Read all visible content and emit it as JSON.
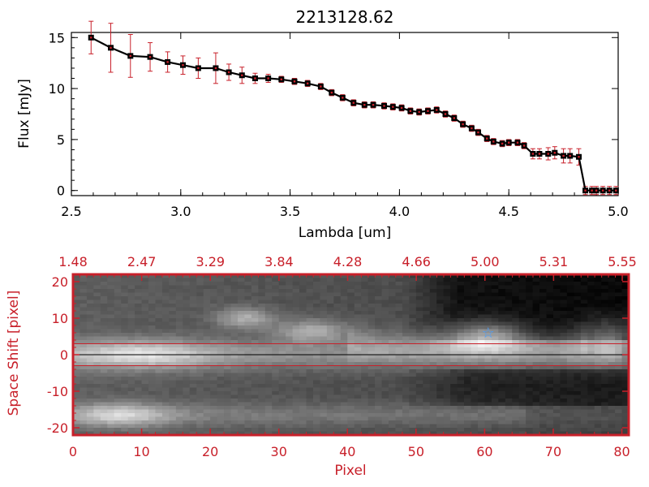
{
  "colors": {
    "axis_black": "#000000",
    "accent_red": "#c8202a",
    "line_black": "#000000",
    "marker_red": "#c8202a",
    "star_blue": "#4aa0ff"
  },
  "chart_data": [
    {
      "type": "line",
      "title": "2213128.62",
      "xlabel": "Lambda [um]",
      "ylabel": "Flux [mJy]",
      "xlim": [
        2.5,
        5.0
      ],
      "ylim": [
        -0.5,
        15.5
      ],
      "xticks": [
        "2.5",
        "3.0",
        "3.5",
        "4.0",
        "4.5",
        "5.0"
      ],
      "yticks": [
        "0",
        "5",
        "10",
        "15"
      ],
      "series": [
        {
          "x": [
            2.59,
            2.68,
            2.77,
            2.86,
            2.94,
            3.01,
            3.08,
            3.16,
            3.22,
            3.28,
            3.34,
            3.4,
            3.46,
            3.52,
            3.58,
            3.64,
            3.69,
            3.74,
            3.79,
            3.84,
            3.88,
            3.93,
            3.97,
            4.01,
            4.05,
            4.09,
            4.13,
            4.17,
            4.21,
            4.25,
            4.29,
            4.33,
            4.36,
            4.4,
            4.43,
            4.47,
            4.5,
            4.54,
            4.57,
            4.61,
            4.64,
            4.68,
            4.71,
            4.75,
            4.78,
            4.82,
            4.85,
            4.88,
            4.9,
            4.93,
            4.96,
            4.99
          ],
          "y": [
            15.0,
            14.0,
            13.2,
            13.1,
            12.6,
            12.3,
            12.0,
            12.0,
            11.6,
            11.3,
            11.0,
            11.0,
            10.9,
            10.7,
            10.5,
            10.2,
            9.6,
            9.1,
            8.6,
            8.4,
            8.4,
            8.3,
            8.2,
            8.1,
            7.8,
            7.7,
            7.8,
            7.9,
            7.5,
            7.1,
            6.5,
            6.1,
            5.7,
            5.1,
            4.8,
            4.6,
            4.7,
            4.7,
            4.4,
            3.6,
            3.6,
            3.6,
            3.7,
            3.4,
            3.4,
            3.3,
            0.0,
            0.0,
            0.0,
            0.0,
            0.0,
            0.0
          ],
          "yerr": [
            1.6,
            2.4,
            2.1,
            1.4,
            1.0,
            0.9,
            1.0,
            1.5,
            0.8,
            0.8,
            0.5,
            0.4,
            0.3,
            0.3,
            0.3,
            0.3,
            0.3,
            0.3,
            0.3,
            0.3,
            0.3,
            0.3,
            0.3,
            0.3,
            0.3,
            0.3,
            0.3,
            0.3,
            0.3,
            0.3,
            0.3,
            0.3,
            0.3,
            0.3,
            0.3,
            0.3,
            0.3,
            0.3,
            0.3,
            0.5,
            0.5,
            0.6,
            0.6,
            0.7,
            0.7,
            0.8,
            0.4,
            0.4,
            0.4,
            0.4,
            0.4,
            0.4
          ]
        }
      ]
    },
    {
      "type": "heatmap",
      "xlabel": "Pixel",
      "ylabel": "Space Shift [pixel]",
      "xlim": [
        0,
        81
      ],
      "ylim": [
        -22,
        22
      ],
      "xticks": [
        "0",
        "10",
        "20",
        "30",
        "40",
        "50",
        "60",
        "70",
        "80"
      ],
      "yticks": [
        "-20",
        "-10",
        "0",
        "10",
        "20"
      ],
      "top_ticks": [
        "1.48",
        "2.47",
        "3.29",
        "3.84",
        "4.28",
        "4.66",
        "5.00",
        "5.31",
        "5.55"
      ],
      "extraction_lines": [
        3,
        -3
      ],
      "star_marker": {
        "x": 60.5,
        "y": 6,
        "symbol": "☆"
      }
    }
  ]
}
